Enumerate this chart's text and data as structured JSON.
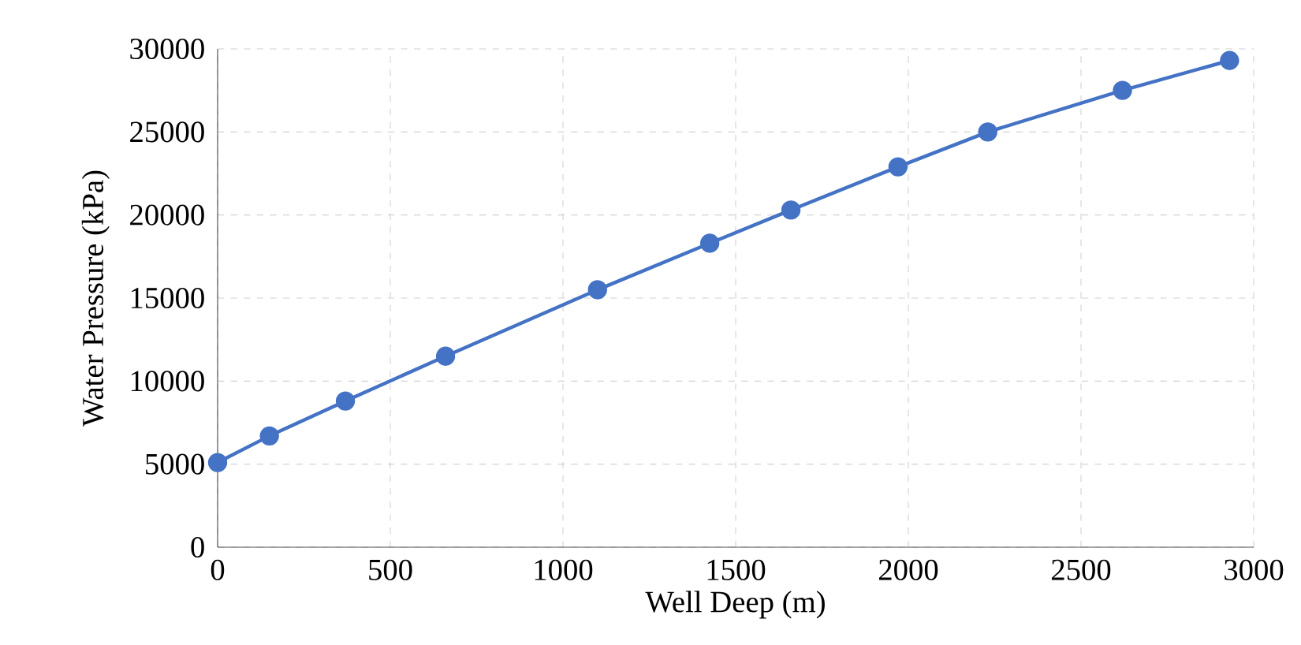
{
  "chart_data": {
    "type": "line",
    "xlabel": "Well Deep (m)",
    "ylabel": "Water Pressure (kPa)",
    "x": [
      0,
      150,
      370,
      660,
      1100,
      1425,
      1660,
      1970,
      2230,
      2620,
      2930
    ],
    "series": [
      {
        "color": "#4472c4",
        "values": [
          5100,
          6700,
          8800,
          11500,
          15500,
          18300,
          20300,
          22900,
          25000,
          27500,
          29300
        ]
      }
    ],
    "xlim": [
      0,
      3000
    ],
    "ylim": [
      0,
      30000
    ],
    "xticks": [
      0,
      500,
      1000,
      1500,
      2000,
      2500,
      3000
    ],
    "yticks": [
      0,
      5000,
      10000,
      15000,
      20000,
      25000,
      30000
    ],
    "grid": true,
    "marker": "circle",
    "line_style": "solid"
  }
}
